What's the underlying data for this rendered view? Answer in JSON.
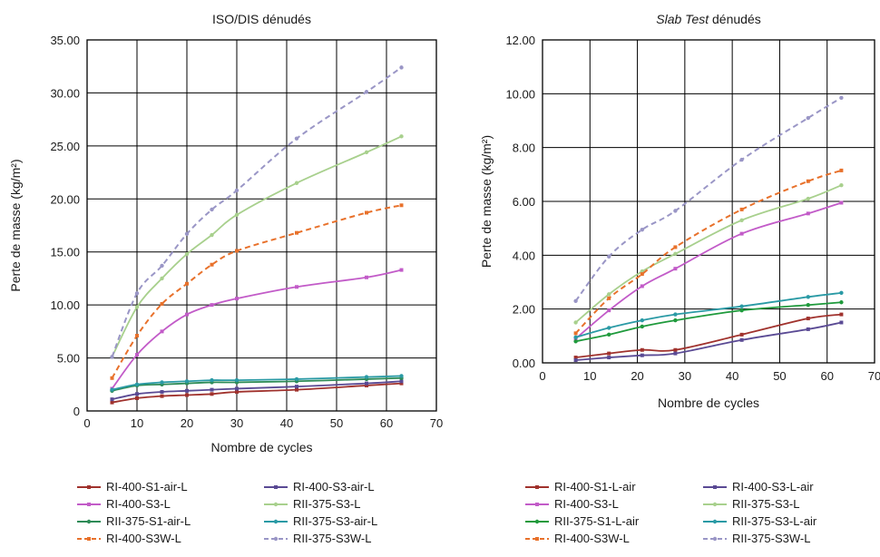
{
  "chart_data": [
    {
      "type": "line",
      "title": "ISO/DIS dénudés",
      "title_italic": "",
      "title_rest": "",
      "xlabel": "Nombre de cycles",
      "ylabel": "Perte de masse  (kg/m²)",
      "xlim": [
        0,
        70
      ],
      "ylim": [
        0,
        35
      ],
      "xticks": [
        0,
        10,
        20,
        30,
        40,
        50,
        60,
        70
      ],
      "yticks": [
        "0",
        "5.00",
        "10.00",
        "15.00",
        "20.00",
        "25.00",
        "30.00",
        "35.00"
      ],
      "ytick_values": [
        0,
        5,
        10,
        15,
        20,
        25,
        30,
        35
      ],
      "grid": true,
      "series": [
        {
          "name": "RI-400-S1-air-L",
          "color": "#a0322d",
          "dash": false,
          "marker": "square",
          "x": [
            5,
            10,
            15,
            20,
            25,
            30,
            42,
            56,
            63
          ],
          "y": [
            0.8,
            1.2,
            1.4,
            1.5,
            1.6,
            1.8,
            2.0,
            2.4,
            2.6
          ]
        },
        {
          "name": "RI-400-S3-air-L",
          "color": "#5a4a94",
          "dash": false,
          "marker": "square",
          "x": [
            5,
            10,
            15,
            20,
            25,
            30,
            42,
            56,
            63
          ],
          "y": [
            1.1,
            1.6,
            1.8,
            1.9,
            2.0,
            2.1,
            2.3,
            2.6,
            2.8
          ]
        },
        {
          "name": "RI-400-S3-L",
          "color": "#c25bc8",
          "dash": false,
          "marker": "square",
          "x": [
            5,
            10,
            15,
            20,
            25,
            30,
            42,
            56,
            63
          ],
          "y": [
            2.1,
            5.3,
            7.5,
            9.1,
            10.0,
            10.6,
            11.7,
            12.6,
            13.3
          ]
        },
        {
          "name": "RII-375-S3-L",
          "color": "#a8d08d",
          "dash": false,
          "marker": "circle",
          "x": [
            5,
            10,
            15,
            20,
            25,
            30,
            42,
            56,
            63
          ],
          "y": [
            5.1,
            9.8,
            12.5,
            14.8,
            16.6,
            18.5,
            21.5,
            24.4,
            25.9
          ]
        },
        {
          "name": "RII-375-S1-air-L",
          "color": "#2e8b57",
          "dash": false,
          "marker": "circle",
          "x": [
            5,
            10,
            15,
            20,
            25,
            30,
            42,
            56,
            63
          ],
          "y": [
            1.9,
            2.4,
            2.5,
            2.6,
            2.7,
            2.7,
            2.8,
            3.0,
            3.1
          ]
        },
        {
          "name": "RII-375-S3-air-L",
          "color": "#2a9aa5",
          "dash": false,
          "marker": "circle",
          "x": [
            5,
            10,
            15,
            20,
            25,
            30,
            42,
            56,
            63
          ],
          "y": [
            2.0,
            2.5,
            2.7,
            2.8,
            2.9,
            2.9,
            3.0,
            3.2,
            3.3
          ]
        },
        {
          "name": "RI-400-S3W-L",
          "color": "#e8712b",
          "dash": true,
          "marker": "square",
          "x": [
            5,
            10,
            15,
            20,
            25,
            30,
            42,
            56,
            63
          ],
          "y": [
            3.1,
            7.1,
            10.1,
            12.0,
            13.8,
            15.1,
            16.8,
            18.7,
            19.4
          ]
        },
        {
          "name": "RII-375-S3W-L",
          "color": "#9a96c6",
          "dash": true,
          "marker": "circle",
          "x": [
            5,
            10,
            15,
            20,
            25,
            30,
            42,
            56,
            63
          ],
          "y": [
            5.1,
            11.1,
            13.7,
            16.7,
            19.0,
            20.8,
            25.7,
            30.1,
            32.4
          ]
        }
      ],
      "legend": "bottom"
    },
    {
      "type": "line",
      "title": "",
      "title_italic": "Slab Test",
      "title_rest": " dénudés",
      "xlabel": "Nombre de cycles",
      "ylabel": "Perte de masse  (kg/m²)",
      "xlim": [
        0,
        70
      ],
      "ylim": [
        0,
        12
      ],
      "xticks": [
        0,
        10,
        20,
        30,
        40,
        50,
        60,
        70
      ],
      "yticks": [
        "0.00",
        "2.00",
        "4.00",
        "6.00",
        "8.00",
        "10.00",
        "12.00"
      ],
      "ytick_values": [
        0,
        2,
        4,
        6,
        8,
        10,
        12
      ],
      "grid": true,
      "series": [
        {
          "name": "RI-400-S1-L-air",
          "color": "#a0322d",
          "dash": false,
          "marker": "square",
          "x": [
            7,
            14,
            21,
            28,
            42,
            56,
            63
          ],
          "y": [
            0.2,
            0.35,
            0.48,
            0.48,
            1.05,
            1.65,
            1.8
          ]
        },
        {
          "name": "RI-400-S3-L-air",
          "color": "#5a4a94",
          "dash": false,
          "marker": "square",
          "x": [
            7,
            14,
            21,
            28,
            42,
            56,
            63
          ],
          "y": [
            0.1,
            0.2,
            0.28,
            0.35,
            0.85,
            1.25,
            1.5
          ]
        },
        {
          "name": "RI-400-S3-L",
          "color": "#c25bc8",
          "dash": false,
          "marker": "square",
          "x": [
            7,
            14,
            21,
            28,
            42,
            56,
            63
          ],
          "y": [
            0.9,
            1.95,
            2.85,
            3.5,
            4.8,
            5.55,
            5.95
          ]
        },
        {
          "name": "RII-375-S3-L",
          "color": "#a8d08d",
          "dash": false,
          "marker": "circle",
          "x": [
            7,
            14,
            21,
            28,
            42,
            56,
            63
          ],
          "y": [
            1.5,
            2.55,
            3.4,
            4.05,
            5.3,
            6.1,
            6.6
          ]
        },
        {
          "name": "RII-375-S1-L-air",
          "color": "#1f9a3c",
          "dash": false,
          "marker": "circle",
          "x": [
            7,
            14,
            21,
            28,
            42,
            56,
            63
          ],
          "y": [
            0.8,
            1.05,
            1.35,
            1.58,
            1.95,
            2.15,
            2.25
          ]
        },
        {
          "name": "RII-375-S3-L-air",
          "color": "#2a9aa5",
          "dash": false,
          "marker": "circle",
          "x": [
            7,
            14,
            21,
            28,
            42,
            56,
            63
          ],
          "y": [
            0.95,
            1.3,
            1.58,
            1.8,
            2.1,
            2.45,
            2.6
          ]
        },
        {
          "name": "RI-400-S3W-L",
          "color": "#e8712b",
          "dash": true,
          "marker": "square",
          "x": [
            7,
            14,
            21,
            28,
            42,
            56,
            63
          ],
          "y": [
            1.1,
            2.4,
            3.3,
            4.3,
            5.7,
            6.75,
            7.15
          ]
        },
        {
          "name": "RII-375-S3W-L",
          "color": "#9a96c6",
          "dash": true,
          "marker": "circle",
          "x": [
            7,
            14,
            21,
            28,
            42,
            56,
            63
          ],
          "y": [
            2.3,
            3.95,
            4.95,
            5.65,
            7.55,
            9.1,
            9.85
          ]
        }
      ],
      "legend": "bottom"
    }
  ],
  "legends": [
    {
      "columns": [
        [
          "RI-400-S1-air-L",
          "RI-400-S3-L",
          "RII-375-S1-air-L",
          "RI-400-S3W-L"
        ],
        [
          "RI-400-S3-air-L",
          "RII-375-S3-L",
          "RII-375-S3-air-L",
          "RII-375-S3W-L"
        ]
      ]
    },
    {
      "columns": [
        [
          "RI-400-S1-L-air",
          "RI-400-S3-L",
          "RII-375-S1-L-air",
          "RI-400-S3W-L"
        ],
        [
          "RI-400-S3-L-air",
          "RII-375-S3-L",
          "RII-375-S3-L-air",
          "RII-375-S3W-L"
        ]
      ]
    }
  ]
}
